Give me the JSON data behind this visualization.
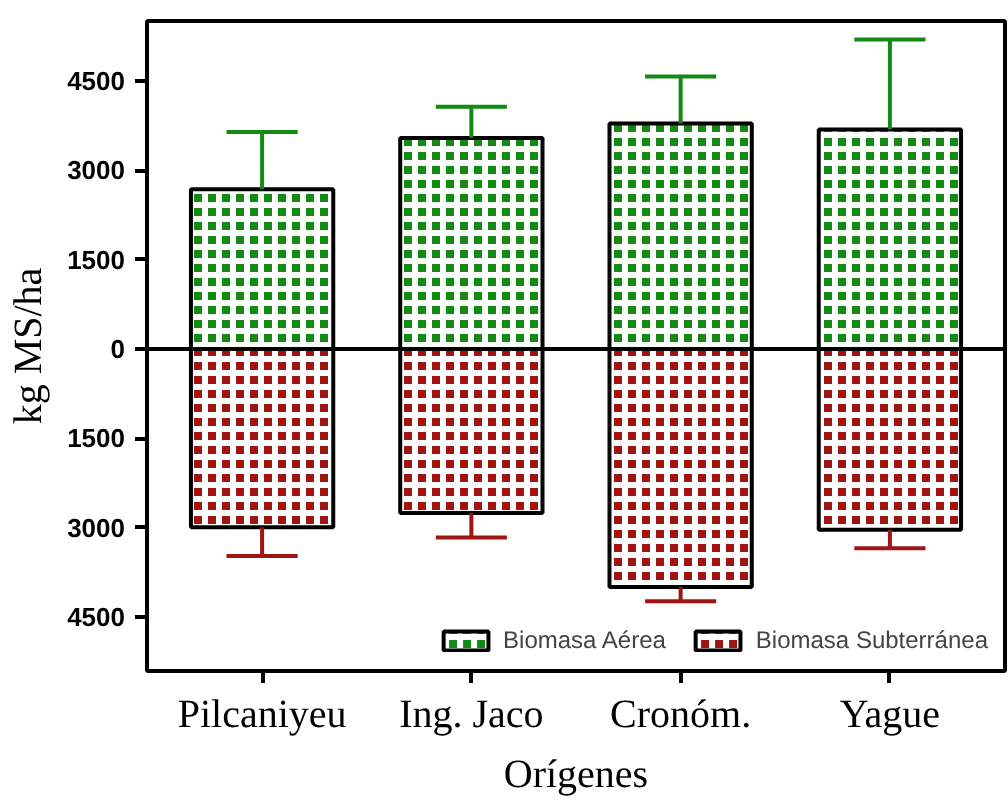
{
  "chart_data": {
    "type": "bar",
    "xlabel": "Orígenes",
    "ylabel": "kg MS/ha",
    "categories": [
      "Pilcaniyeu",
      "Ing. Jaco",
      "Cronóm.",
      "Yague"
    ],
    "series": [
      {
        "name": "Biomasa Aérea",
        "color": "#138a13",
        "values": [
          2680,
          3540,
          3780,
          3680
        ],
        "errors": [
          [
            2680,
            3640
          ],
          [
            3540,
            4060
          ],
          [
            3780,
            4570
          ],
          [
            3680,
            5190
          ]
        ]
      },
      {
        "name": "Biomasa Subterránea",
        "color": "#a01414",
        "values": [
          -2990,
          -2750,
          -3990,
          -3030
        ],
        "errors": [
          [
            -3470,
            -2990
          ],
          [
            -3160,
            -2750
          ],
          [
            -4230,
            -3990
          ],
          [
            -3340,
            -3030
          ]
        ]
      }
    ],
    "ylim": [
      -5400,
      5500
    ],
    "yticks": [
      {
        "value": -4500,
        "label": "4500"
      },
      {
        "value": -3000,
        "label": "3000"
      },
      {
        "value": -1500,
        "label": "1500"
      },
      0,
      1500,
      3000,
      4500
    ],
    "ref_lines": [
      {
        "axis": "y",
        "value": 0
      }
    ],
    "stacked": true,
    "legend": "bottom right",
    "grid": false
  }
}
